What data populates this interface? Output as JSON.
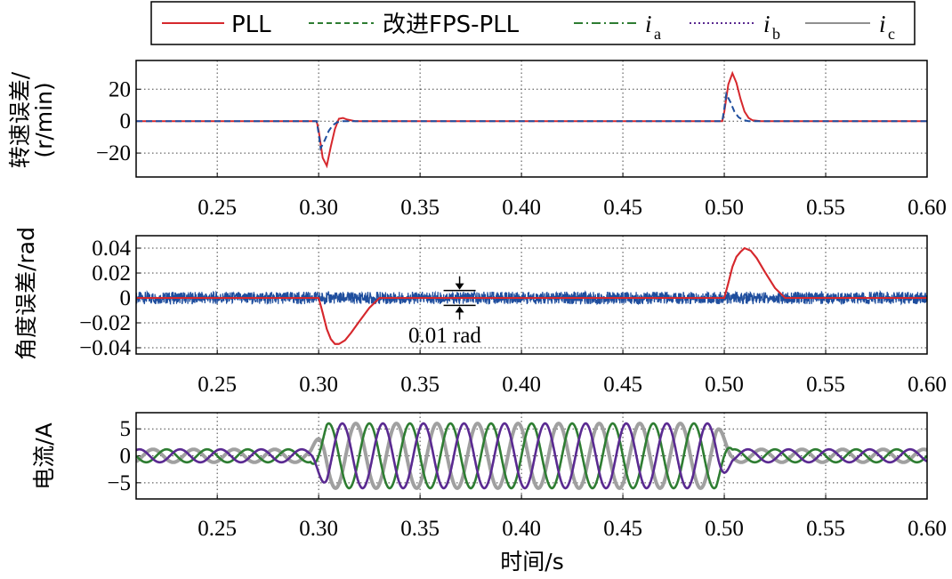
{
  "legend": {
    "pll": "PLL",
    "fps": "改进FPS-PLL",
    "ia": "i",
    "ia_sub": "a",
    "ib": "i",
    "ib_sub": "b",
    "ic": "i",
    "ic_sub": "c"
  },
  "colors": {
    "pll": "#d6282d",
    "fps": "#1f4e9e",
    "ia": "#2e7d32",
    "ib": "#5a2a91",
    "ic": "#a0a0a0"
  },
  "xlabel": "时间/s",
  "chart_data": [
    {
      "type": "line",
      "ylabel_line1": "转速误差/",
      "ylabel_line2": "(r/min)",
      "xlim": [
        0.21,
        0.6
      ],
      "ylim": [
        -35,
        38
      ],
      "xticks": [
        "0.25",
        "0.30",
        "0.35",
        "0.40",
        "0.45",
        "0.50",
        "0.55",
        "0.60"
      ],
      "yticks": [
        {
          "value": 20,
          "label": "20"
        },
        {
          "value": 0,
          "label": "0"
        },
        {
          "value": -20,
          "label": "−20"
        }
      ],
      "grid": true,
      "series": [
        {
          "name": "PLL",
          "x": [
            0.21,
            0.299,
            0.3,
            0.302,
            0.304,
            0.306,
            0.308,
            0.31,
            0.312,
            0.314,
            0.318,
            0.499,
            0.5,
            0.502,
            0.504,
            0.506,
            0.508,
            0.51,
            0.512,
            0.514,
            0.518,
            0.6
          ],
          "y": [
            0,
            0,
            -6,
            -23,
            -28,
            -16,
            -5,
            1.5,
            2,
            1,
            0,
            0,
            6,
            23,
            30,
            24,
            14,
            6,
            2,
            0.5,
            0,
            0
          ]
        },
        {
          "name": "改进FPS-PLL",
          "x": [
            0.21,
            0.299,
            0.3,
            0.301,
            0.303,
            0.305,
            0.307,
            0.309,
            0.312,
            0.499,
            0.5,
            0.501,
            0.503,
            0.505,
            0.507,
            0.509,
            0.512,
            0.6
          ],
          "y": [
            0,
            0,
            -8,
            -17,
            -12,
            -6,
            -2.5,
            -0.8,
            0,
            0,
            8,
            17,
            12,
            6,
            2.5,
            0.8,
            0,
            0
          ]
        }
      ]
    },
    {
      "type": "line",
      "ylabel_line1": "角度误差/rad",
      "xlim": [
        0.21,
        0.6
      ],
      "ylim": [
        -0.045,
        0.05
      ],
      "xticks": [
        "0.25",
        "0.30",
        "0.35",
        "0.40",
        "0.45",
        "0.50",
        "0.55",
        "0.60"
      ],
      "yticks": [
        {
          "value": 0.04,
          "label": "0.04"
        },
        {
          "value": 0.02,
          "label": "0.02"
        },
        {
          "value": 0,
          "label": "0"
        },
        {
          "value": -0.02,
          "label": "−0.02"
        },
        {
          "value": -0.04,
          "label": "−0.04"
        }
      ],
      "grid": true,
      "annotation": "0.01 rad",
      "series": [
        {
          "name": "PLL",
          "x": [
            0.21,
            0.3,
            0.302,
            0.304,
            0.306,
            0.308,
            0.31,
            0.313,
            0.316,
            0.32,
            0.325,
            0.33,
            0.5,
            0.502,
            0.504,
            0.506,
            0.508,
            0.51,
            0.513,
            0.516,
            0.52,
            0.525,
            0.53,
            0.6
          ],
          "y": [
            0,
            0,
            -0.012,
            -0.025,
            -0.033,
            -0.037,
            -0.037,
            -0.034,
            -0.028,
            -0.019,
            -0.008,
            0,
            0,
            0.012,
            0.025,
            0.033,
            0.037,
            0.04,
            0.038,
            0.032,
            0.021,
            0.008,
            0,
            0
          ]
        },
        {
          "name": "改进FPS-PLL",
          "noise_band": 0.005,
          "x": [
            0.21,
            0.6
          ],
          "y": [
            0,
            0
          ]
        }
      ]
    },
    {
      "type": "line",
      "ylabel_line1": "电流/A",
      "xlim": [
        0.21,
        0.6
      ],
      "ylim": [
        -8,
        8
      ],
      "xticks": [
        "0.25",
        "0.30",
        "0.35",
        "0.40",
        "0.45",
        "0.50",
        "0.55",
        "0.60"
      ],
      "yticks": [
        {
          "value": 5,
          "label": "5"
        },
        {
          "value": 0,
          "label": "0"
        },
        {
          "value": -5,
          "label": "−5"
        }
      ],
      "grid": true,
      "frequency_hz": 50,
      "amplitude_low_A": 1.2,
      "amplitude_high_A": 6,
      "high_interval": [
        0.3,
        0.5
      ],
      "series": [
        {
          "name": "ia",
          "phase_deg": 0
        },
        {
          "name": "ib",
          "phase_deg": -120
        },
        {
          "name": "ic",
          "phase_deg": 120
        }
      ]
    }
  ]
}
